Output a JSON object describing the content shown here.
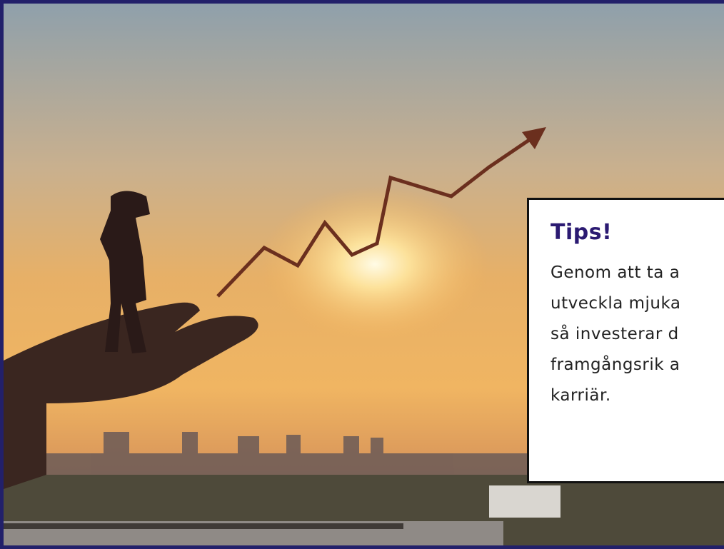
{
  "tip": {
    "title": "Tips!",
    "lines": [
      "Genom att ta a",
      "utveckla mjuka",
      "så investerar d",
      "framgångsrik a",
      "karriär."
    ]
  }
}
